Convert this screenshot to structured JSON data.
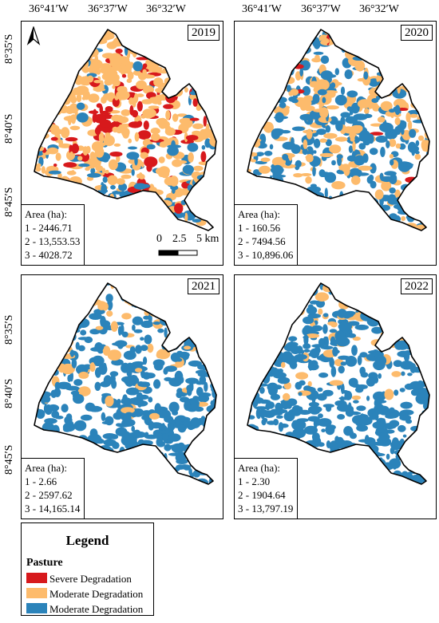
{
  "axes": {
    "top_labels": [
      "36°41′W",
      "36°37′W",
      "36°32′W"
    ],
    "left_labels": [
      "8°35′S",
      "8°40′S",
      "8°45′S"
    ]
  },
  "colors": {
    "severe": "#d7191c",
    "moderate_orange": "#fdbb6c",
    "moderate_blue": "#2b83ba"
  },
  "panels": [
    {
      "year": "2019",
      "area_title": "Area (ha):",
      "areas": [
        "1 - 2446.71",
        "2 - 13,553.53",
        "3 - 4028.72"
      ],
      "mix": {
        "severe": 0.12,
        "orange": 0.66,
        "blue": 0.22
      }
    },
    {
      "year": "2020",
      "area_title": "Area (ha):",
      "areas": [
        "1 - 160.56",
        "2 - 7494.56",
        "3 - 10,896.06"
      ],
      "mix": {
        "severe": 0.01,
        "orange": 0.41,
        "blue": 0.58
      }
    },
    {
      "year": "2021",
      "area_title": "Area (ha):",
      "areas": [
        "1 - 2.66",
        "2 - 2597.62",
        "3 - 14,165.14"
      ],
      "mix": {
        "severe": 0.0,
        "orange": 0.15,
        "blue": 0.85
      }
    },
    {
      "year": "2022",
      "area_title": "Area (ha):",
      "areas": [
        "1 - 2.30",
        "2 - 1904.64",
        "3 - 13,797.19"
      ],
      "mix": {
        "severe": 0.0,
        "orange": 0.12,
        "blue": 0.88
      }
    }
  ],
  "scale": {
    "labels": [
      "0",
      "2.5",
      "5 km"
    ]
  },
  "north_arrow": {
    "icon": "north-arrow-icon"
  },
  "legend": {
    "title": "Legend",
    "subtitle": "Pasture",
    "items": [
      {
        "label": "Severe Degradation",
        "color": "#d7191c"
      },
      {
        "label": "Moderate Degradation",
        "color": "#fdbb6c"
      },
      {
        "label": "Moderate Degradation",
        "color": "#2b83ba"
      }
    ]
  }
}
